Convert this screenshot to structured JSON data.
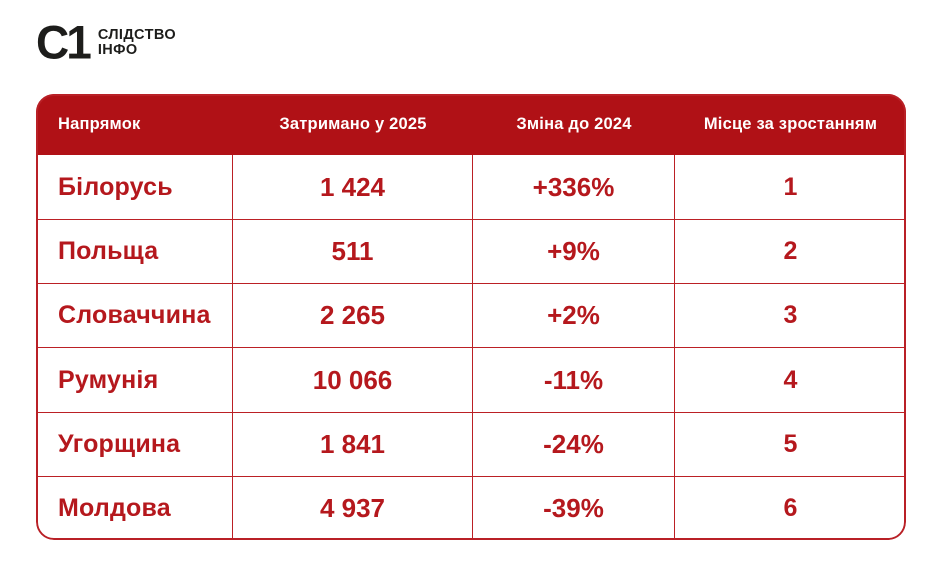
{
  "logo": {
    "mark": "С1",
    "name_line1": "СЛІДСТВО",
    "name_line2": "ІНФО"
  },
  "colors": {
    "header_background": "#b01116",
    "cell_text_red": "#b5181d",
    "table_border_red": "#bb2025",
    "header_text": "#ffffff",
    "logo_dark": "#1d1d1b",
    "page_background": "#ffffff"
  },
  "table": {
    "headers": [
      {
        "label": "Напрямок"
      },
      {
        "label": "Затримано у 2025"
      },
      {
        "label": "Зміна до 2024"
      },
      {
        "label": "Місце за зростанням"
      }
    ],
    "rows": [
      {
        "country": "Білорусь",
        "detained": "1 424",
        "change": "+336%",
        "rank": "1"
      },
      {
        "country": "Польща",
        "detained": "511",
        "change": "+9%",
        "rank": "2"
      },
      {
        "country": "Словаччина",
        "detained": "2 265",
        "change": "+2%",
        "rank": "3"
      },
      {
        "country": "Румунія",
        "detained": "10 066",
        "change": "-11%",
        "rank": "4"
      },
      {
        "country": "Угорщина",
        "detained": "1 841",
        "change": "-24%",
        "rank": "5"
      },
      {
        "country": "Молдова",
        "detained": "4 937",
        "change": "-39%",
        "rank": "6"
      }
    ]
  },
  "chart_data": {
    "type": "table",
    "title": "",
    "columns": [
      "Напрямок",
      "Затримано у 2025",
      "Зміна до 2024",
      "Місце за зростанням"
    ],
    "rows": [
      [
        "Білорусь",
        1424,
        "+336%",
        1
      ],
      [
        "Польща",
        511,
        "+9%",
        2
      ],
      [
        "Словаччина",
        2265,
        "+2%",
        3
      ],
      [
        "Румунія",
        10066,
        "-11%",
        4
      ],
      [
        "Угорщина",
        1841,
        "-24%",
        5
      ],
      [
        "Молдова",
        4937,
        "-39%",
        6
      ]
    ]
  }
}
